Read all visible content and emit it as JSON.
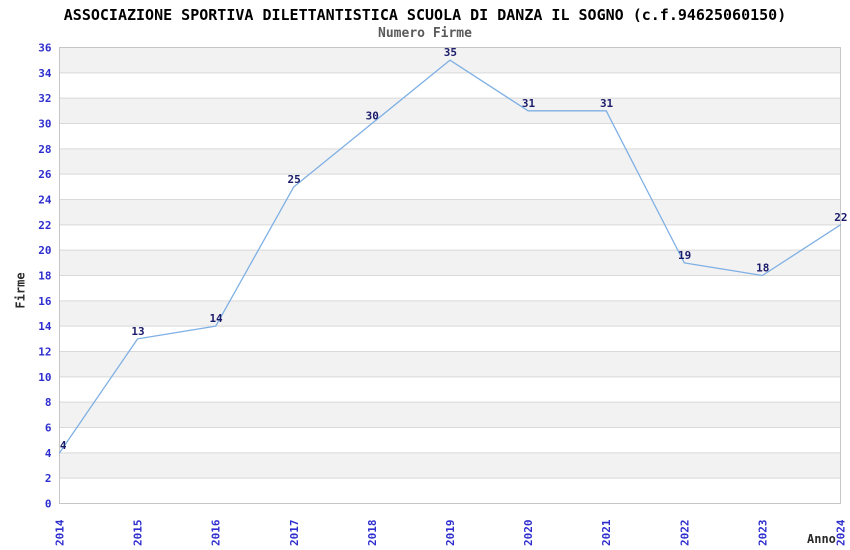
{
  "page": {
    "background": "#FFFFFF"
  },
  "chart_data": {
    "type": "line",
    "title": "ASSOCIAZIONE SPORTIVA DILETTANTISTICA SCUOLA DI DANZA IL SOGNO (c.f.94625060150)",
    "subtitle": "Numero Firme",
    "xlabel": "Anno",
    "ylabel": "Firme",
    "categories": [
      "2014",
      "2015",
      "2016",
      "2017",
      "2018",
      "2019",
      "2020",
      "2021",
      "2022",
      "2023",
      "2024"
    ],
    "values": [
      4,
      13,
      14,
      25,
      30,
      35,
      31,
      31,
      19,
      18,
      22
    ],
    "series": [
      {
        "name": "Numero Firme",
        "values": [
          4,
          13,
          14,
          25,
          30,
          35,
          31,
          31,
          19,
          18,
          22
        ]
      }
    ],
    "ylim": [
      0,
      36
    ],
    "ytick_step": 2,
    "yticks": [
      0,
      2,
      4,
      6,
      8,
      10,
      12,
      14,
      16,
      18,
      20,
      22,
      24,
      26,
      28,
      30,
      32,
      34,
      36
    ],
    "point_labels": [
      "4",
      "13",
      "14",
      "25",
      "30",
      "35",
      "31",
      "31",
      "19",
      "18",
      "22"
    ],
    "x_tick_rotation": -90,
    "grid": "horizontal alternating bands every 2 units with light gridlines",
    "legend": "none",
    "colors": {
      "line": "#7FB0E4",
      "point_label": "#1B1B6B",
      "tick_label": "#2E2ECF",
      "title": "#000000",
      "subtitle": "#5A5A5A",
      "axis_title": "#2B2B2B",
      "band": "#F2F2F2",
      "band_alt": "#FFFFFF",
      "gridline": "#D9D9D9",
      "plot_border": "#C6C6C6",
      "background": "#FFFFFF"
    }
  }
}
